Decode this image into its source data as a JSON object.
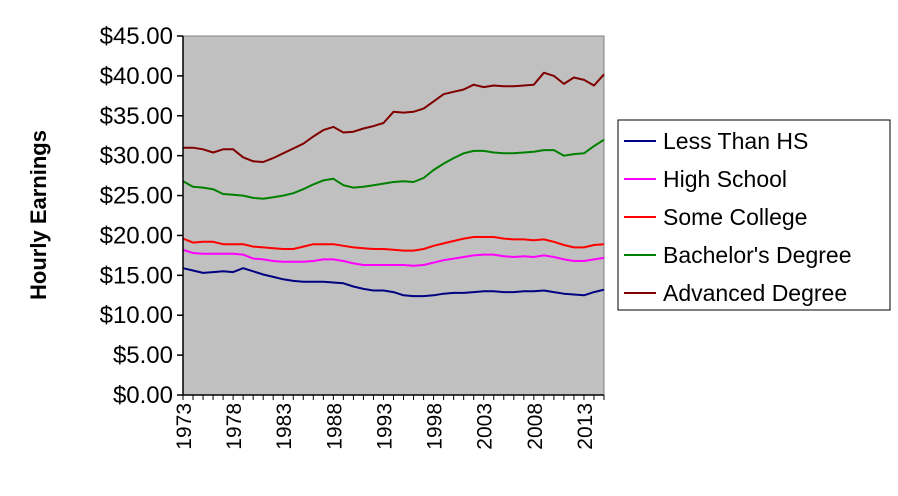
{
  "chart_data": {
    "type": "line",
    "title": "",
    "xlabel": "",
    "ylabel": "Hourly Earnings",
    "xlim": [
      1973,
      2015
    ],
    "ylim": [
      0,
      45
    ],
    "y_tick_values": [
      0,
      5,
      10,
      15,
      20,
      25,
      30,
      35,
      40,
      45
    ],
    "y_tick_labels": [
      "$0.00",
      "$5.00",
      "$10.00",
      "$15.00",
      "$20.00",
      "$25.00",
      "$30.00",
      "$35.00",
      "$40.00",
      "$45.00"
    ],
    "x_tick_values": [
      1973,
      1978,
      1983,
      1988,
      1993,
      1998,
      2003,
      2008,
      2013
    ],
    "x_tick_labels": [
      "1973",
      "1978",
      "1983",
      "1988",
      "1993",
      "1998",
      "2003",
      "2008",
      "2013"
    ],
    "grid": false,
    "plot_background": "#c0c0c0",
    "legend_position": "right",
    "x": [
      1973,
      1974,
      1975,
      1976,
      1977,
      1978,
      1979,
      1980,
      1981,
      1982,
      1983,
      1984,
      1985,
      1986,
      1987,
      1988,
      1989,
      1990,
      1991,
      1992,
      1993,
      1994,
      1995,
      1996,
      1997,
      1998,
      1999,
      2000,
      2001,
      2002,
      2003,
      2004,
      2005,
      2006,
      2007,
      2008,
      2009,
      2010,
      2011,
      2012,
      2013,
      2014,
      2015
    ],
    "series": [
      {
        "name": "Less Than HS",
        "color": "#000080",
        "values": [
          15.9,
          15.6,
          15.3,
          15.4,
          15.5,
          15.4,
          15.9,
          15.5,
          15.1,
          14.8,
          14.5,
          14.3,
          14.2,
          14.2,
          14.2,
          14.1,
          14.0,
          13.6,
          13.3,
          13.1,
          13.1,
          12.9,
          12.5,
          12.4,
          12.4,
          12.5,
          12.7,
          12.8,
          12.8,
          12.9,
          13.0,
          13.0,
          12.9,
          12.9,
          13.0,
          13.0,
          13.1,
          12.9,
          12.7,
          12.6,
          12.5,
          12.9,
          13.2
        ]
      },
      {
        "name": "High School",
        "color": "#ff00ff",
        "values": [
          18.2,
          17.8,
          17.7,
          17.7,
          17.7,
          17.7,
          17.6,
          17.1,
          17.0,
          16.8,
          16.7,
          16.7,
          16.7,
          16.8,
          17.0,
          17.0,
          16.8,
          16.5,
          16.3,
          16.3,
          16.3,
          16.3,
          16.3,
          16.2,
          16.3,
          16.6,
          16.9,
          17.1,
          17.3,
          17.5,
          17.6,
          17.6,
          17.4,
          17.3,
          17.4,
          17.3,
          17.5,
          17.3,
          17.0,
          16.8,
          16.8,
          17.0,
          17.2
        ]
      },
      {
        "name": "Some College",
        "color": "#ff0000",
        "values": [
          19.6,
          19.1,
          19.2,
          19.2,
          18.9,
          18.9,
          18.9,
          18.6,
          18.5,
          18.4,
          18.3,
          18.3,
          18.6,
          18.9,
          18.9,
          18.9,
          18.7,
          18.5,
          18.4,
          18.3,
          18.3,
          18.2,
          18.1,
          18.1,
          18.3,
          18.7,
          19.0,
          19.3,
          19.6,
          19.8,
          19.8,
          19.8,
          19.6,
          19.5,
          19.5,
          19.4,
          19.5,
          19.2,
          18.8,
          18.5,
          18.5,
          18.8,
          18.9
        ]
      },
      {
        "name": "Bachelor's Degree",
        "color": "#008000",
        "values": [
          26.8,
          26.1,
          26.0,
          25.8,
          25.2,
          25.1,
          25.0,
          24.7,
          24.6,
          24.8,
          25.0,
          25.3,
          25.8,
          26.4,
          26.9,
          27.1,
          26.3,
          26.0,
          26.1,
          26.3,
          26.5,
          26.7,
          26.8,
          26.7,
          27.2,
          28.2,
          29.0,
          29.7,
          30.3,
          30.6,
          30.6,
          30.4,
          30.3,
          30.3,
          30.4,
          30.5,
          30.7,
          30.7,
          30.0,
          30.2,
          30.3,
          31.2,
          32.0
        ]
      },
      {
        "name": "Advanced Degree",
        "color": "#800000",
        "values": [
          31.0,
          31.0,
          30.8,
          30.4,
          30.8,
          30.8,
          29.8,
          29.3,
          29.2,
          29.7,
          30.3,
          30.9,
          31.5,
          32.4,
          33.2,
          33.6,
          32.9,
          33.0,
          33.4,
          33.7,
          34.1,
          35.5,
          35.4,
          35.5,
          35.9,
          36.8,
          37.7,
          38.0,
          38.3,
          38.9,
          38.6,
          38.8,
          38.7,
          38.7,
          38.8,
          38.9,
          40.4,
          40.0,
          39.0,
          39.8,
          39.5,
          38.8,
          40.2
        ]
      }
    ]
  }
}
